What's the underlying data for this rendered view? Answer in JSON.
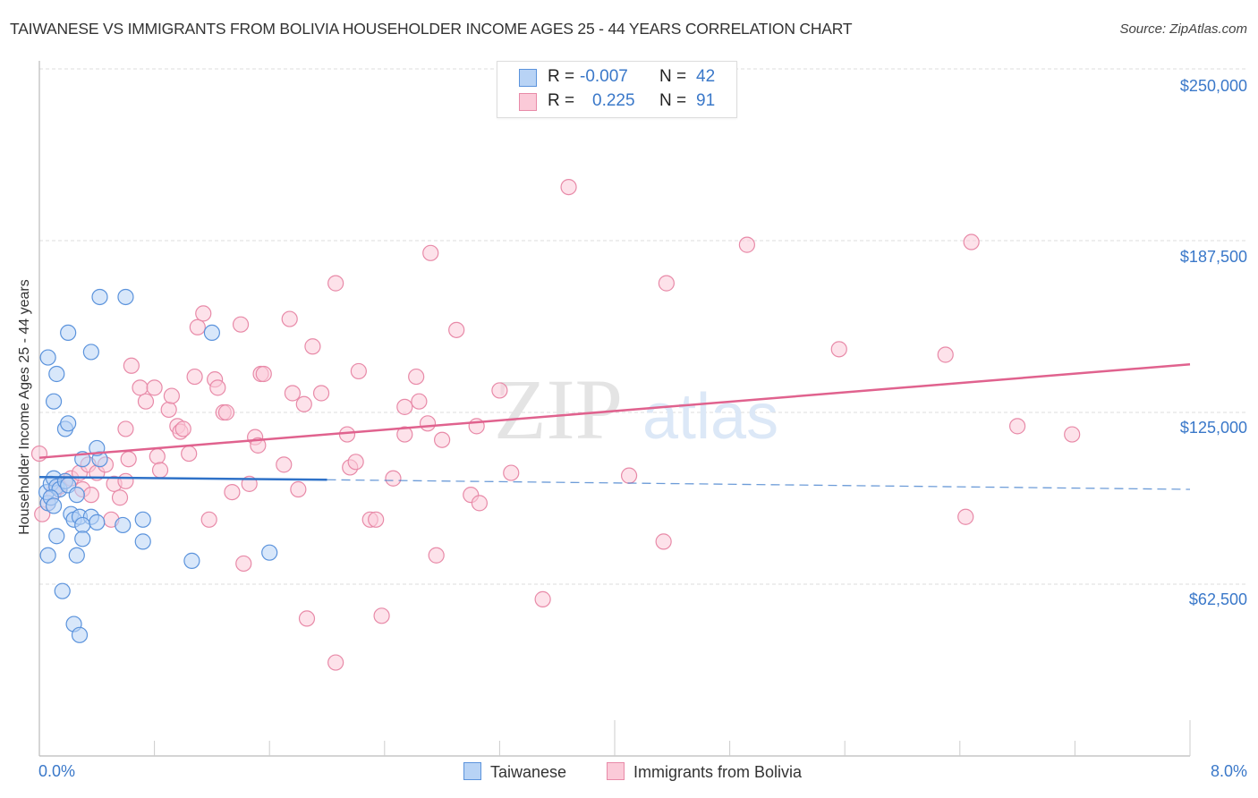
{
  "header": {
    "title": "TAIWANESE VS IMMIGRANTS FROM BOLIVIA HOUSEHOLDER INCOME AGES 25 - 44 YEARS CORRELATION CHART",
    "source": "Source: ZipAtlas.com"
  },
  "legend_stats": [
    {
      "series": "Taiwanese",
      "r_label": "R =",
      "r_value": "-0.007",
      "n_label": "N =",
      "n_value": "42"
    },
    {
      "series": "Immigrants from Bolivia",
      "r_label": "R =",
      "r_value": "0.225",
      "n_label": "N =",
      "n_value": "91"
    }
  ],
  "bottom_legend": [
    {
      "label": "Taiwanese"
    },
    {
      "label": "Immigrants from Bolivia"
    }
  ],
  "axes": {
    "ylabel": "Householder Income Ages 25 - 44 years",
    "y_ticks": [
      "$250,000",
      "$187,500",
      "$125,000",
      "$62,500"
    ],
    "x_min_label": "0.0%",
    "x_max_label": "8.0%"
  },
  "watermark": {
    "zip": "ZIP",
    "atlas": "atlas"
  },
  "colors": {
    "taiwanese_fill": "#b8d3f5",
    "taiwanese_stroke": "#5b93dc",
    "taiwanese_line": "#2f72c8",
    "bolivia_fill": "#fbcad8",
    "bolivia_stroke": "#e88aa8",
    "bolivia_line": "#e0628e",
    "tick_text": "#3a78c9"
  },
  "chart_data": {
    "type": "scatter",
    "title": "TAIWANESE VS IMMIGRANTS FROM BOLIVIA HOUSEHOLDER INCOME AGES 25 - 44 YEARS CORRELATION CHART",
    "xlabel": "",
    "ylabel": "Householder Income Ages 25 - 44 years",
    "xlim": [
      0,
      8
    ],
    "ylim": [
      0,
      260000
    ],
    "x_unit": "%",
    "y_ticks": [
      62500,
      125000,
      187500,
      250000
    ],
    "grid": true,
    "legend_position": "top-center and bottom",
    "series": [
      {
        "name": "Taiwanese",
        "R": -0.007,
        "N": 42,
        "trend": {
          "x0": 0.0,
          "y0": 101500,
          "x1": 2.0,
          "y1": 100500,
          "dashed_extension_to": 8.0,
          "y_at_end": 97000
        },
        "points": [
          [
            0.06,
            92000
          ],
          [
            0.05,
            96000
          ],
          [
            0.08,
            99000
          ],
          [
            0.1,
            101000
          ],
          [
            0.12,
            98000
          ],
          [
            0.14,
            97000
          ],
          [
            0.18,
            100000
          ],
          [
            0.2,
            98500
          ],
          [
            0.08,
            94000
          ],
          [
            0.1,
            91000
          ],
          [
            0.22,
            88000
          ],
          [
            0.24,
            86000
          ],
          [
            0.28,
            87000
          ],
          [
            0.36,
            87000
          ],
          [
            0.3,
            84000
          ],
          [
            0.4,
            85000
          ],
          [
            0.12,
            80000
          ],
          [
            0.3,
            79000
          ],
          [
            0.26,
            73000
          ],
          [
            0.06,
            73000
          ],
          [
            0.72,
            86000
          ],
          [
            0.58,
            84000
          ],
          [
            0.72,
            78000
          ],
          [
            1.06,
            71000
          ],
          [
            1.6,
            74000
          ],
          [
            0.16,
            60000
          ],
          [
            0.24,
            48000
          ],
          [
            0.28,
            44000
          ],
          [
            0.26,
            95000
          ],
          [
            0.42,
            108000
          ],
          [
            0.4,
            112000
          ],
          [
            0.3,
            108000
          ],
          [
            0.18,
            119000
          ],
          [
            0.2,
            121000
          ],
          [
            0.1,
            129000
          ],
          [
            0.12,
            139000
          ],
          [
            0.06,
            145000
          ],
          [
            0.2,
            154000
          ],
          [
            0.36,
            147000
          ],
          [
            0.42,
            167000
          ],
          [
            0.6,
            167000
          ],
          [
            1.2,
            154000
          ]
        ]
      },
      {
        "name": "Immigrants from Bolivia",
        "R": 0.225,
        "N": 91,
        "trend": {
          "x0": 0.0,
          "y0": 108500,
          "x1": 8.0,
          "y1": 142500
        },
        "points": [
          [
            0.02,
            88000
          ],
          [
            0.06,
            92000
          ],
          [
            0.1,
            96000
          ],
          [
            0.14,
            98000
          ],
          [
            0.18,
            100000
          ],
          [
            0.22,
            101000
          ],
          [
            0.28,
            103000
          ],
          [
            0.34,
            106000
          ],
          [
            0.3,
            97000
          ],
          [
            0.36,
            95000
          ],
          [
            0.4,
            103000
          ],
          [
            0.46,
            106000
          ],
          [
            0.52,
            99000
          ],
          [
            0.5,
            86000
          ],
          [
            0.56,
            94000
          ],
          [
            0.6,
            100000
          ],
          [
            0.62,
            108000
          ],
          [
            0.6,
            119000
          ],
          [
            0.64,
            142000
          ],
          [
            0.7,
            134000
          ],
          [
            0.74,
            129000
          ],
          [
            0.8,
            134000
          ],
          [
            0.82,
            109000
          ],
          [
            0.84,
            104000
          ],
          [
            0.9,
            126000
          ],
          [
            0.92,
            131000
          ],
          [
            0.96,
            120000
          ],
          [
            0.98,
            118000
          ],
          [
            1.0,
            119000
          ],
          [
            1.04,
            110000
          ],
          [
            1.08,
            138000
          ],
          [
            1.1,
            156000
          ],
          [
            1.14,
            161000
          ],
          [
            1.18,
            86000
          ],
          [
            1.22,
            137000
          ],
          [
            1.24,
            134000
          ],
          [
            1.28,
            125000
          ],
          [
            1.3,
            125000
          ],
          [
            1.34,
            96000
          ],
          [
            1.4,
            157000
          ],
          [
            1.42,
            70000
          ],
          [
            1.46,
            99000
          ],
          [
            1.5,
            116000
          ],
          [
            1.52,
            113000
          ],
          [
            1.54,
            139000
          ],
          [
            1.56,
            139000
          ],
          [
            1.7,
            106000
          ],
          [
            1.74,
            159000
          ],
          [
            1.76,
            132000
          ],
          [
            1.8,
            97000
          ],
          [
            1.84,
            128000
          ],
          [
            1.86,
            50000
          ],
          [
            1.9,
            149000
          ],
          [
            1.96,
            132000
          ],
          [
            2.06,
            172000
          ],
          [
            2.06,
            34000
          ],
          [
            2.14,
            117000
          ],
          [
            2.16,
            105000
          ],
          [
            2.2,
            107000
          ],
          [
            2.22,
            140000
          ],
          [
            2.3,
            86000
          ],
          [
            2.34,
            86000
          ],
          [
            2.38,
            51000
          ],
          [
            2.46,
            101000
          ],
          [
            2.54,
            127000
          ],
          [
            2.54,
            117000
          ],
          [
            2.62,
            138000
          ],
          [
            2.64,
            129000
          ],
          [
            2.7,
            121000
          ],
          [
            2.72,
            183000
          ],
          [
            2.76,
            73000
          ],
          [
            2.8,
            115000
          ],
          [
            2.9,
            155000
          ],
          [
            3.0,
            95000
          ],
          [
            3.04,
            120000
          ],
          [
            3.06,
            92000
          ],
          [
            3.2,
            133000
          ],
          [
            3.28,
            103000
          ],
          [
            3.5,
            57000
          ],
          [
            3.68,
            207000
          ],
          [
            4.1,
            102000
          ],
          [
            4.34,
            78000
          ],
          [
            4.36,
            172000
          ],
          [
            4.92,
            186000
          ],
          [
            5.56,
            148000
          ],
          [
            6.3,
            146000
          ],
          [
            6.44,
            87000
          ],
          [
            6.48,
            187000
          ],
          [
            6.8,
            120000
          ],
          [
            7.18,
            117000
          ],
          [
            0.0,
            110000
          ]
        ]
      }
    ]
  }
}
